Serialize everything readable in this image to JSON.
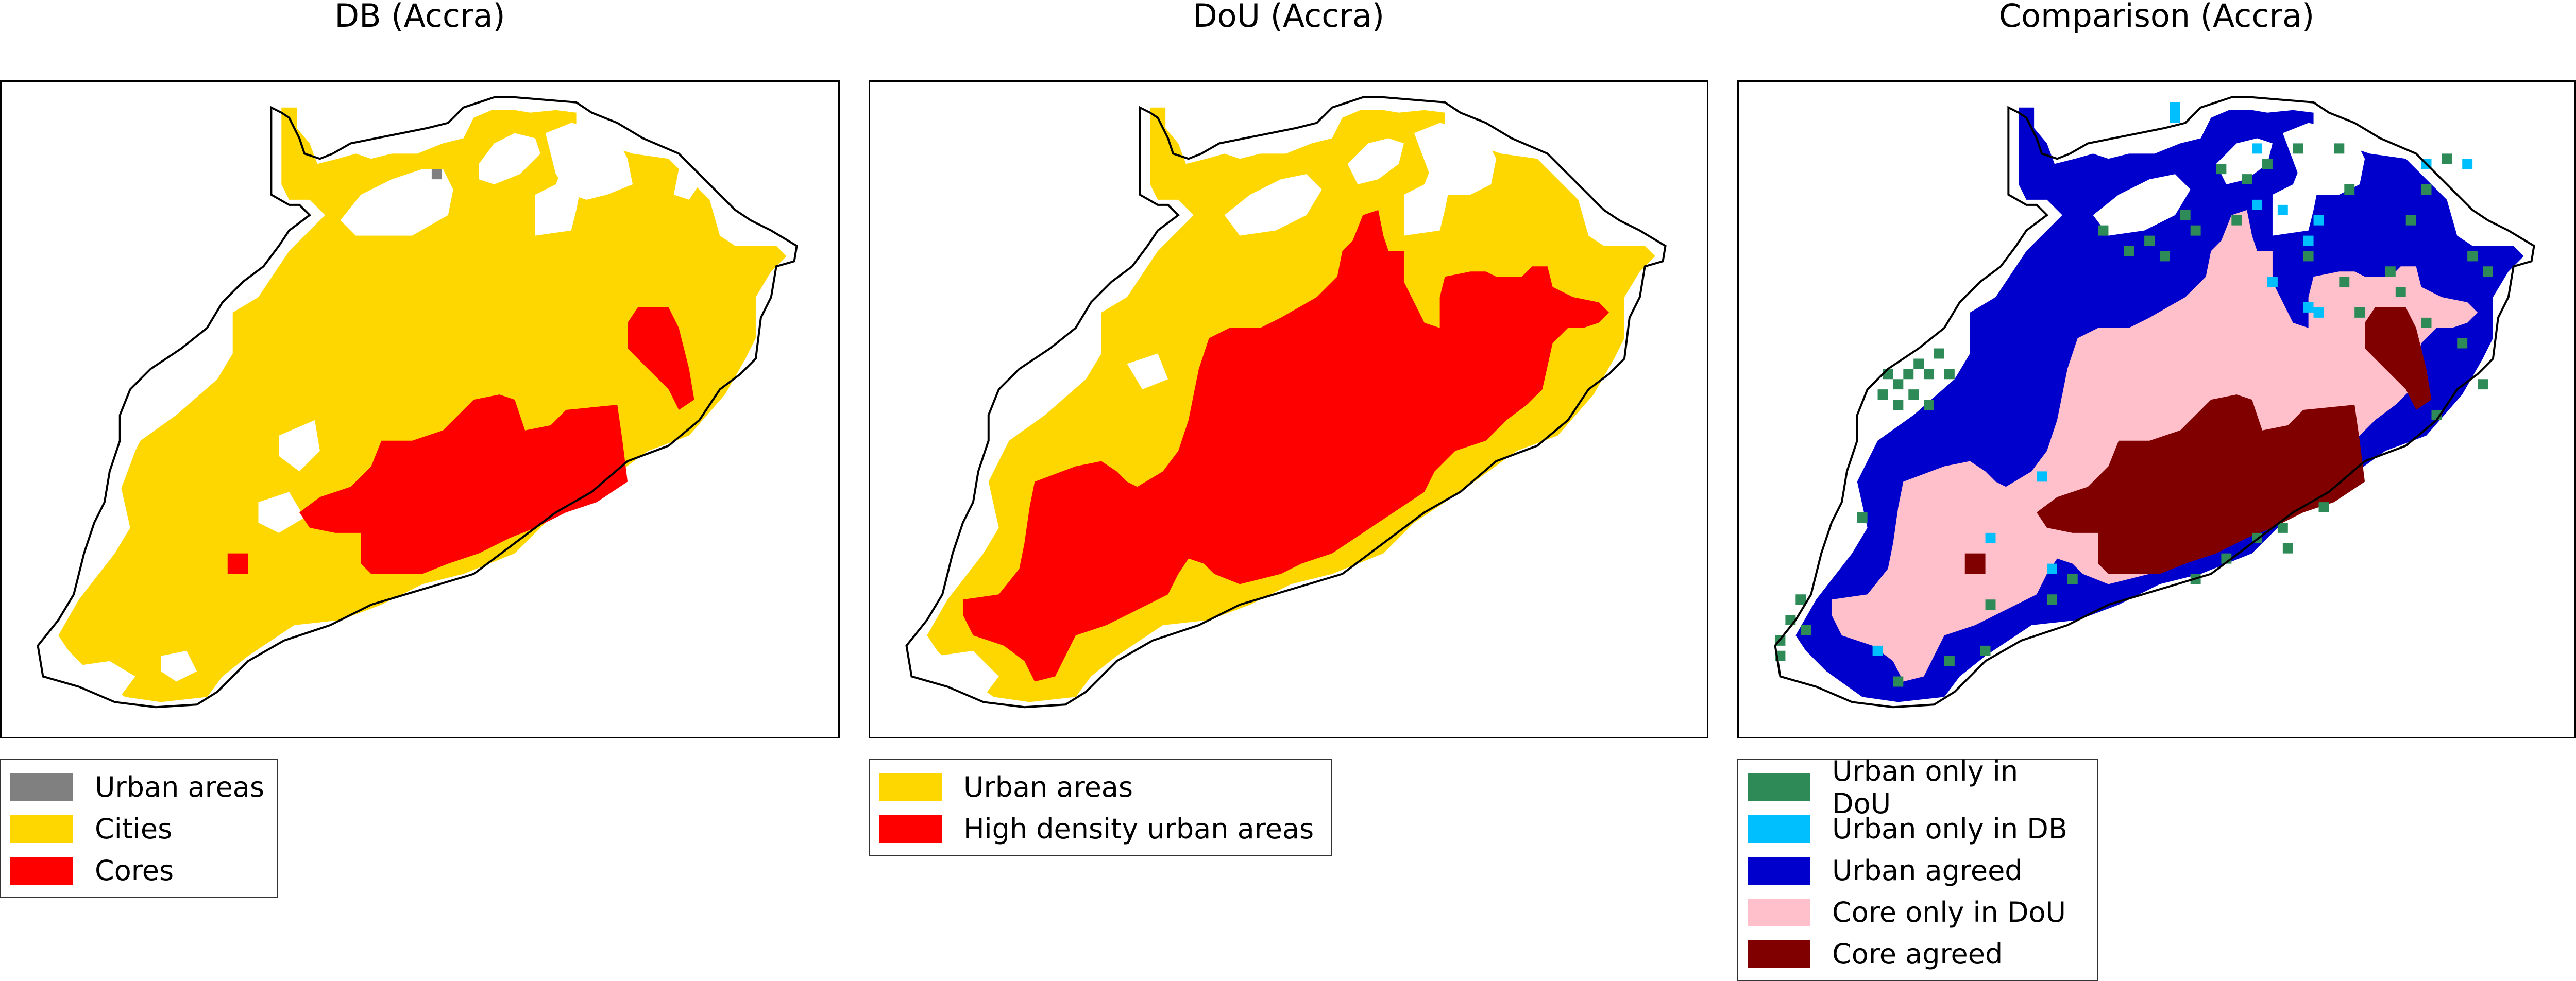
{
  "panels": [
    {
      "title": "DB (Accra)",
      "legend": [
        {
          "label": "Urban areas",
          "color": "#808080"
        },
        {
          "label": "Cities",
          "color": "#FFD700"
        },
        {
          "label": "Cores",
          "color": "#FF0000"
        }
      ]
    },
    {
      "title": "DoU (Accra)",
      "legend": [
        {
          "label": "Urban areas",
          "color": "#FFD700"
        },
        {
          "label": "High density urban areas",
          "color": "#FF0000"
        }
      ]
    },
    {
      "title": "Comparison (Accra)",
      "legend": [
        {
          "label": "Urban only in DoU",
          "color": "#2E8B57"
        },
        {
          "label": "Urban only in DB",
          "color": "#00BFFF"
        },
        {
          "label": "Urban agreed",
          "color": "#0000CD"
        },
        {
          "label": "Core only in DoU",
          "color": "#FFC0CB"
        },
        {
          "label": "Core agreed",
          "color": "#800000"
        }
      ]
    }
  ],
  "outline_color": "#000000",
  "background_color": "#FFFFFF"
}
